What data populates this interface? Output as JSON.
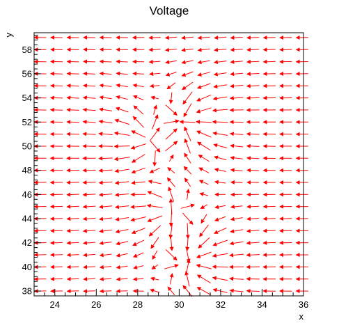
{
  "chart_data": {
    "type": "vector-field",
    "title": "Voltage",
    "xlabel": "x",
    "ylabel": "y",
    "xlim": [
      23,
      36
    ],
    "ylim": [
      37.6,
      59.4
    ],
    "x_ticks": [
      24,
      26,
      28,
      30,
      32,
      34,
      36
    ],
    "y_ticks": [
      38,
      40,
      42,
      44,
      46,
      48,
      50,
      52,
      54,
      56,
      58
    ],
    "arrow_color": "#ff0000",
    "grid": false,
    "legend": "none",
    "field": {
      "description": "arrows on a regular grid, x from 23.3 to 35.9 and y from 38 to 59",
      "x_start": 23.3,
      "x_step": 0.79,
      "nx": 17,
      "y_start": 38.0,
      "y_step": 1.0,
      "ny": 22,
      "sources": [
        {
          "x": 28.6,
          "y": 50.5,
          "q": 1.0
        },
        {
          "x": 29.6,
          "y": 44.5,
          "q": 1.0
        },
        {
          "x": 30.2,
          "y": 52.0,
          "q": -1.2
        },
        {
          "x": 30.5,
          "y": 40.5,
          "q": -1.2
        }
      ],
      "uniform": [
        -1.0,
        0.0
      ]
    }
  }
}
